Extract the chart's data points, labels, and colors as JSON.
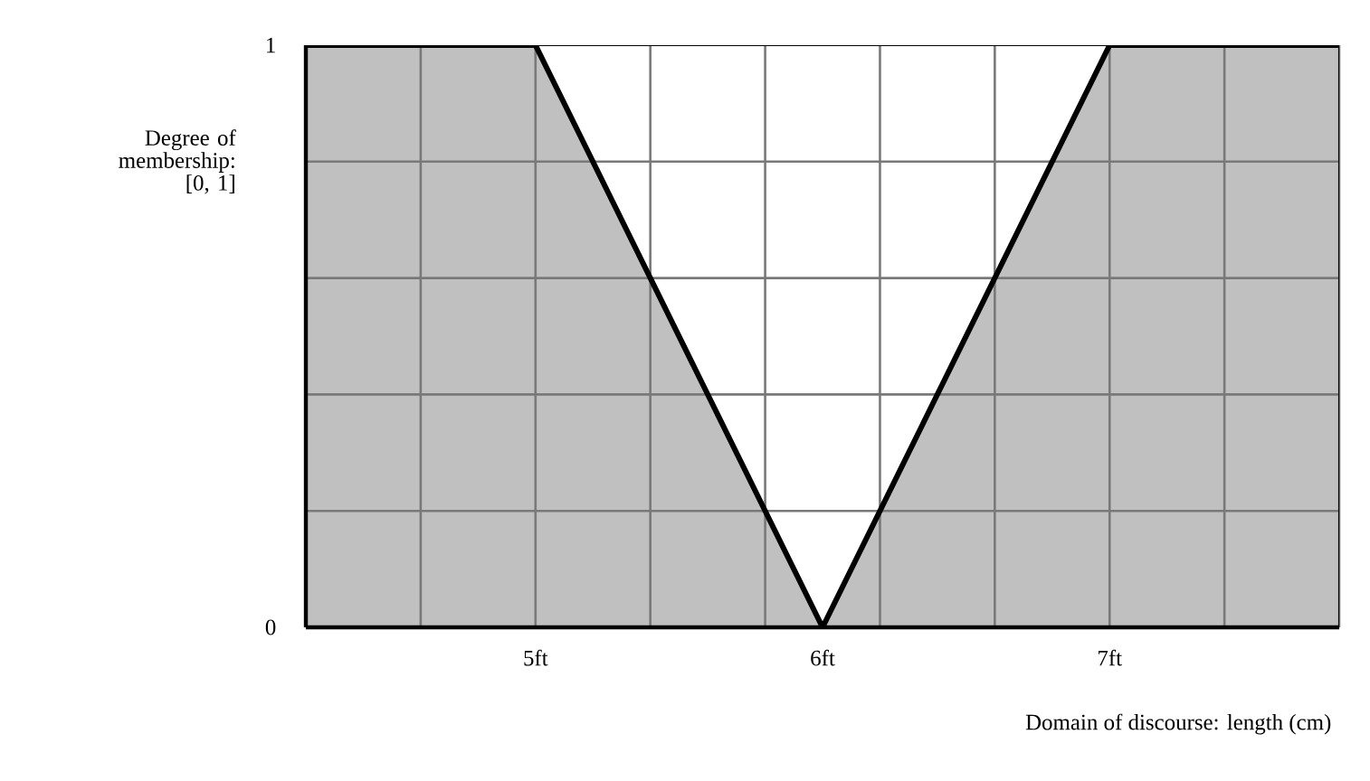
{
  "chart_data": {
    "type": "area",
    "xlabel": "Domain of discourse:  length (cm)",
    "ylabel": "Degree of membership: [0, 1]",
    "x": [
      4.2,
      5,
      6,
      7,
      7.8
    ],
    "series": [
      {
        "color": "#c0c0c0",
        "values": [
          1,
          1,
          0,
          1,
          1
        ]
      }
    ],
    "xlim": [
      4.2,
      7.8
    ],
    "xticks": [
      {
        "value": 4.2,
        "label": null
      },
      {
        "value": 4.6,
        "label": null
      },
      {
        "value": 5.0,
        "label": null
      },
      {
        "value": 5.4,
        "label": null
      },
      {
        "value": 5.8,
        "label": null
      },
      {
        "value": 6.2,
        "label": null
      },
      {
        "value": 6.6,
        "label": null
      },
      {
        "value": 7.0,
        "label": null
      },
      {
        "value": 7.4,
        "label": null
      },
      {
        "value": 7.8,
        "label": null
      },
      {
        "value": 5,
        "label": "5ft"
      },
      {
        "value": 6,
        "label": "6ft"
      },
      {
        "value": 7,
        "label": "7ft"
      }
    ],
    "ylim": [
      0,
      1
    ],
    "yticks": [
      0,
      {
        "value": 0.2,
        "label": null
      },
      {
        "value": 0.4,
        "label": null
      },
      {
        "value": 0.6,
        "label": null
      },
      {
        "value": 0.8,
        "label": null
      },
      1
    ],
    "grid": true
  }
}
